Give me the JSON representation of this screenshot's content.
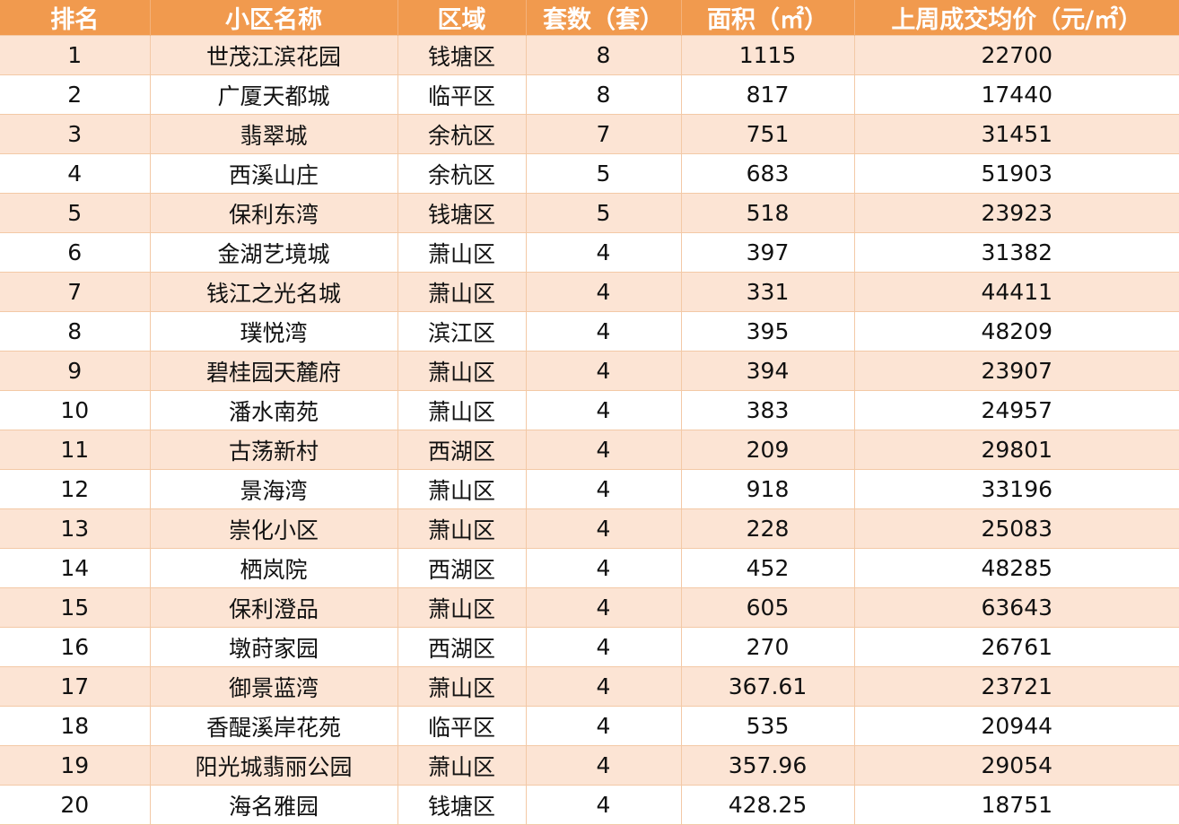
{
  "table": {
    "headers": [
      "排名",
      "小区名称",
      "区域",
      "套数（套）",
      "面积（㎡）",
      "上周成交均价（元/㎡）"
    ],
    "rows": [
      [
        "1",
        "世茂江滨花园",
        "钱塘区",
        "8",
        "1115",
        "22700"
      ],
      [
        "2",
        "广厦天都城",
        "临平区",
        "8",
        "817",
        "17440"
      ],
      [
        "3",
        "翡翠城",
        "余杭区",
        "7",
        "751",
        "31451"
      ],
      [
        "4",
        "西溪山庄",
        "余杭区",
        "5",
        "683",
        "51903"
      ],
      [
        "5",
        "保利东湾",
        "钱塘区",
        "5",
        "518",
        "23923"
      ],
      [
        "6",
        "金湖艺境城",
        "萧山区",
        "4",
        "397",
        "31382"
      ],
      [
        "7",
        "钱江之光名城",
        "萧山区",
        "4",
        "331",
        "44411"
      ],
      [
        "8",
        "璞悦湾",
        "滨江区",
        "4",
        "395",
        "48209"
      ],
      [
        "9",
        "碧桂园天麓府",
        "萧山区",
        "4",
        "394",
        "23907"
      ],
      [
        "10",
        "潘水南苑",
        "萧山区",
        "4",
        "383",
        "24957"
      ],
      [
        "11",
        "古荡新村",
        "西湖区",
        "4",
        "209",
        "29801"
      ],
      [
        "12",
        "景海湾",
        "萧山区",
        "4",
        "918",
        "33196"
      ],
      [
        "13",
        "崇化小区",
        "萧山区",
        "4",
        "228",
        "25083"
      ],
      [
        "14",
        "栖岚院",
        "西湖区",
        "4",
        "452",
        "48285"
      ],
      [
        "15",
        "保利澄品",
        "萧山区",
        "4",
        "605",
        "63643"
      ],
      [
        "16",
        "墩莳家园",
        "西湖区",
        "4",
        "270",
        "26761"
      ],
      [
        "17",
        "御景蓝湾",
        "萧山区",
        "4",
        "367.61",
        "23721"
      ],
      [
        "18",
        "香醍溪岸花苑",
        "临平区",
        "4",
        "535",
        "20944"
      ],
      [
        "19",
        "阳光城翡丽公园",
        "萧山区",
        "4",
        "357.96",
        "29054"
      ],
      [
        "20",
        "海名雅园",
        "钱塘区",
        "4",
        "428.25",
        "18751"
      ]
    ]
  },
  "colors": {
    "header_bg": "#f19a4e",
    "header_text": "#ffffff",
    "row_alt_bg": "#fce4d4",
    "row_bg": "#ffffff",
    "grid_line": "#f3c9a6"
  }
}
